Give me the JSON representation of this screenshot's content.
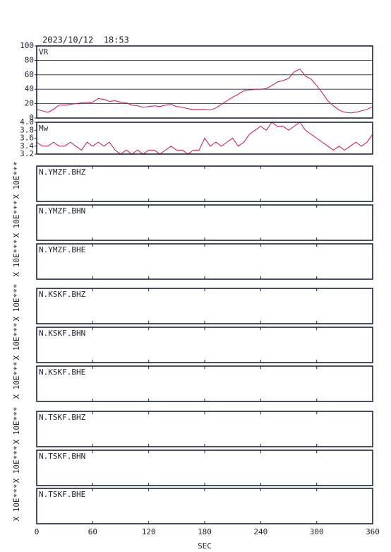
{
  "chart_data": {
    "type": "line",
    "title": "2023/10/12  18:53",
    "xlabel": "SEC",
    "xlim": [
      0,
      360
    ],
    "xticks": [
      0,
      60,
      120,
      180,
      240,
      300,
      360
    ],
    "x": [
      0,
      6,
      12,
      18,
      24,
      30,
      36,
      42,
      48,
      54,
      60,
      66,
      72,
      78,
      84,
      90,
      96,
      102,
      108,
      114,
      120,
      126,
      132,
      138,
      144,
      150,
      156,
      162,
      168,
      174,
      180,
      186,
      192,
      198,
      204,
      210,
      216,
      222,
      228,
      234,
      240,
      246,
      252,
      258,
      264,
      270,
      276,
      282,
      288,
      294,
      300,
      306,
      312,
      318,
      324,
      330,
      336,
      342,
      348,
      354,
      360
    ],
    "panels": [
      {
        "label": "VR",
        "color": "#d0104c",
        "ylim": [
          0,
          100
        ],
        "yticks": [
          0,
          20,
          40,
          60,
          80,
          100
        ],
        "grid": true,
        "values": [
          12,
          10,
          8,
          12,
          18,
          18,
          19,
          20,
          21,
          22,
          22,
          27,
          26,
          23,
          24,
          22,
          21,
          18,
          17,
          15,
          16,
          17,
          16,
          18,
          19,
          16,
          15,
          13,
          12,
          12,
          12,
          11,
          14,
          19,
          24,
          29,
          33,
          38,
          39,
          40,
          40,
          41,
          45,
          50,
          52,
          55,
          64,
          68,
          58,
          54,
          45,
          35,
          24,
          17,
          11,
          8,
          7,
          8,
          10,
          12,
          16
        ]
      },
      {
        "label": "Mw",
        "color": "#d0104c",
        "ylim": [
          3.2,
          4.0
        ],
        "yticks": [
          3.2,
          3.4,
          3.6,
          3.8,
          {
            "value": 4,
            "label": "4.0"
          }
        ],
        "grid": false,
        "values": [
          3.5,
          3.4,
          3.4,
          3.5,
          3.4,
          3.4,
          3.5,
          3.4,
          3.3,
          3.5,
          3.4,
          3.5,
          3.4,
          3.5,
          3.3,
          3.2,
          3.3,
          3.2,
          3.3,
          3.2,
          3.3,
          3.3,
          3.2,
          3.3,
          3.4,
          3.3,
          3.3,
          3.2,
          3.3,
          3.3,
          3.6,
          3.4,
          3.5,
          3.4,
          3.5,
          3.6,
          3.4,
          3.5,
          3.7,
          3.8,
          3.9,
          3.8,
          4.0,
          3.9,
          3.9,
          3.8,
          3.9,
          4.0,
          3.8,
          3.7,
          3.6,
          3.5,
          3.4,
          3.3,
          3.4,
          3.3,
          3.4,
          3.5,
          3.4,
          3.5,
          3.7
        ]
      }
    ],
    "traces": [
      {
        "label": "N.YMZF.BHZ",
        "scale": "X 10E***"
      },
      {
        "label": "N.YMZF.BHN",
        "scale": "X 10E***"
      },
      {
        "label": "N.YMZF.BHE",
        "scale": "X 10E***"
      },
      {
        "label": "N.KSKF.BHZ",
        "scale": "X 10E***"
      },
      {
        "label": "N.KSKF.BHN",
        "scale": "X 10E***"
      },
      {
        "label": "N.KSKF.BHE",
        "scale": "X 10E***"
      },
      {
        "label": "N.TSKF.BHZ",
        "scale": "X 10E***"
      },
      {
        "label": "N.TSKF.BHN",
        "scale": "X 10E***"
      },
      {
        "label": "N.TSKF.BHE",
        "scale": "X 10E***"
      }
    ]
  }
}
